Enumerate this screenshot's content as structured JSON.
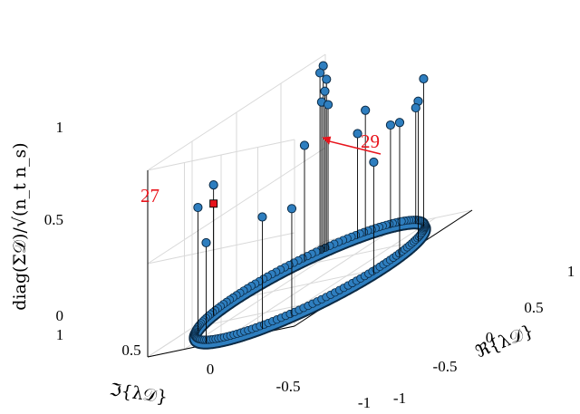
{
  "chart_data": {
    "type": "scatter",
    "subtype": "3d-stem",
    "xlabel": "ℜ{λ𝒟}",
    "ylabel": "ℑ{λ𝒟}",
    "zlabel": "diag(Σ𝒟)/√(n_t n_s)",
    "xlim": [
      -1,
      1
    ],
    "ylim": [
      -1,
      1
    ],
    "zlim": [
      0,
      1
    ],
    "x_ticks": [
      "-1",
      "-0.5",
      "0",
      "0.5",
      "1"
    ],
    "y_ticks": [
      "-1",
      "-0.5",
      "0",
      "0.5",
      "1"
    ],
    "z_ticks": [
      "0",
      "0.5",
      "1"
    ],
    "grid": true,
    "marker_color": "#2e7ebf",
    "highlight_color": "#e8141c",
    "description_values": {
      "ring_radius": 1.0,
      "typical_stem_height": 0.5,
      "tallest_stem_height": 1.0
    },
    "series": [
      {
        "marker": "circle",
        "points": [
          [
            0.72,
            0.69,
            1.0
          ],
          [
            0.7,
            0.71,
            0.97
          ],
          [
            0.74,
            0.67,
            0.92
          ],
          [
            0.73,
            0.68,
            0.86
          ],
          [
            0.71,
            0.7,
            0.81
          ],
          [
            0.75,
            0.66,
            0.78
          ],
          [
            0.85,
            -0.52,
            0.79
          ],
          [
            0.5,
            -0.87,
            0.75
          ],
          [
            -0.3,
            0.95,
            0.7
          ],
          [
            0.2,
            -0.98,
            0.72
          ],
          [
            -0.6,
            0.8,
            0.66
          ],
          [
            0.93,
            0.37,
            0.67
          ],
          [
            0.6,
            0.8,
            0.62
          ],
          [
            -0.9,
            -0.44,
            0.6
          ],
          [
            -0.75,
            -0.66,
            0.58
          ],
          [
            0.96,
            -0.28,
            0.62
          ],
          [
            0.9,
            0.44,
            0.56
          ],
          [
            -0.1,
            -0.99,
            0.6
          ],
          [
            0.99,
            0.1,
            0.55
          ],
          [
            -0.97,
            0.24,
            0.54
          ]
        ]
      },
      {
        "marker": "square",
        "points": [
          [
            -0.3,
            0.95,
            0.6
          ]
        ]
      }
    ],
    "annotations": [
      {
        "text": "27",
        "point": [
          -0.3,
          0.95,
          0.6
        ]
      },
      {
        "text": "29",
        "point": [
          0.74,
          0.67,
          0.56
        ]
      }
    ]
  }
}
